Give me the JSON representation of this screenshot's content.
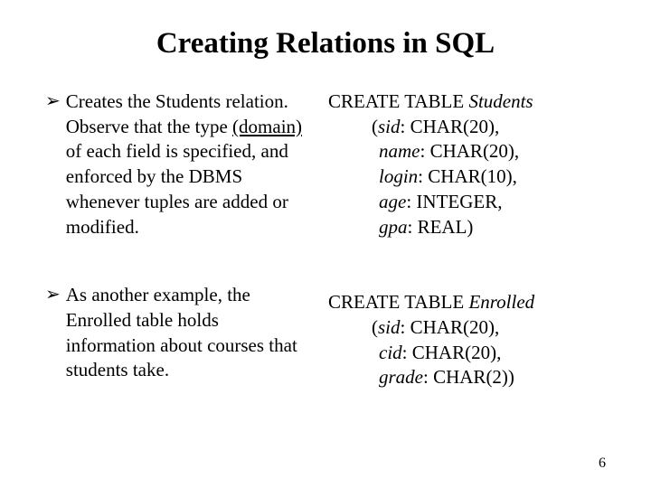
{
  "title": "Creating Relations in SQL",
  "bullets": [
    {
      "pre": "Creates the Students relation. Observe that the type ",
      "domain": "(domain)",
      "post": "  of each field is specified, and enforced by the DBMS whenever tuples are added or modified."
    },
    {
      "text": "As another example, the Enrolled table holds information about courses that students take."
    }
  ],
  "code1": {
    "line1_pre": "CREATE TABLE ",
    "line1_name": "Students",
    "open": "(",
    "fields": [
      {
        "name": "sid",
        "sep": ": ",
        "type": "CHAR(20),",
        "indent": 1
      },
      {
        "name": "name",
        "sep": ": ",
        "type": "CHAR(20),",
        "indent": 2
      },
      {
        "name": "login",
        "sep": ": ",
        "type": "CHAR(10),",
        "indent": 2
      },
      {
        "name": "age",
        "sep": ": ",
        "type": "INTEGER,",
        "indent": 2
      },
      {
        "name": "gpa",
        "sep": ": ",
        "type": "REAL)",
        "indent": 2
      }
    ]
  },
  "code2": {
    "line1_pre": "CREATE TABLE ",
    "line1_name": "Enrolled",
    "open": "(",
    "fields": [
      {
        "name": "sid",
        "sep": ": ",
        "type": "CHAR(20),",
        "indent": 1
      },
      {
        "name": "cid",
        "sep": ": ",
        "type": "CHAR(20),",
        "indent": 2
      },
      {
        "name": "grade",
        "sep": ": ",
        "type": "CHAR(2))",
        "indent": 2
      }
    ]
  },
  "page_number": "6",
  "colors": {
    "text": "#000000",
    "bg": "#ffffff"
  }
}
